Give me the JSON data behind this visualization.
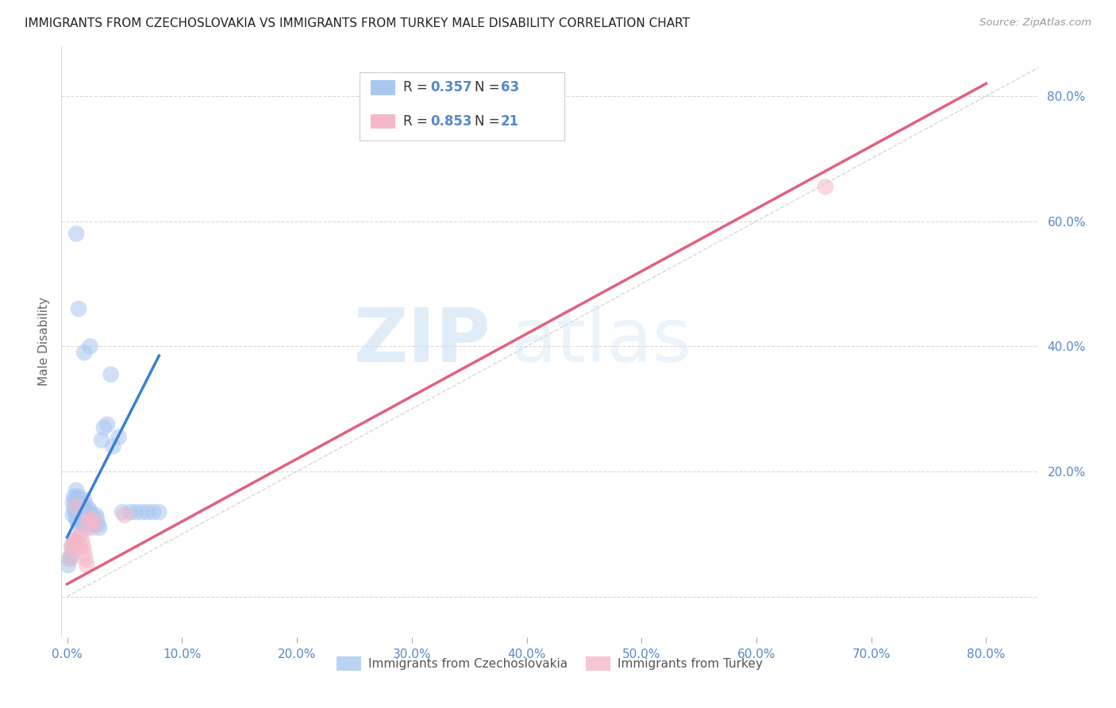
{
  "title": "IMMIGRANTS FROM CZECHOSLOVAKIA VS IMMIGRANTS FROM TURKEY MALE DISABILITY CORRELATION CHART",
  "source": "Source: ZipAtlas.com",
  "ylabel": "Male Disability",
  "background_color": "#ffffff",
  "grid_color": "#d8d8d8",
  "watermark_zip": "ZIP",
  "watermark_atlas": "atlas",
  "legend_r1": "R = 0.357",
  "legend_n1": "N = 63",
  "legend_r2": "R = 0.853",
  "legend_n2": "N = 21",
  "color_blue": "#a8c8f0",
  "color_pink": "#f5b8c8",
  "color_blue_line": "#3a7fd5",
  "color_pink_line": "#e06080",
  "color_diag": "#cccccc",
  "title_color": "#222222",
  "axis_tick_color": "#5588cc",
  "czech_x": [
    0.005,
    0.005,
    0.006,
    0.006,
    0.007,
    0.007,
    0.008,
    0.008,
    0.008,
    0.009,
    0.009,
    0.01,
    0.01,
    0.01,
    0.011,
    0.011,
    0.012,
    0.012,
    0.013,
    0.013,
    0.014,
    0.014,
    0.015,
    0.015,
    0.016,
    0.016,
    0.017,
    0.018,
    0.018,
    0.019,
    0.02,
    0.02,
    0.021,
    0.022,
    0.023,
    0.024,
    0.025,
    0.026,
    0.027,
    0.028,
    0.03,
    0.032,
    0.035,
    0.038,
    0.04,
    0.045,
    0.048,
    0.055,
    0.06,
    0.065,
    0.07,
    0.075,
    0.08,
    0.001,
    0.002,
    0.003,
    0.004,
    0.005,
    0.006,
    0.008,
    0.01,
    0.015,
    0.02
  ],
  "czech_y": [
    0.15,
    0.13,
    0.16,
    0.14,
    0.155,
    0.135,
    0.17,
    0.15,
    0.125,
    0.145,
    0.12,
    0.16,
    0.14,
    0.115,
    0.155,
    0.13,
    0.15,
    0.125,
    0.145,
    0.12,
    0.14,
    0.115,
    0.155,
    0.13,
    0.145,
    0.12,
    0.135,
    0.125,
    0.11,
    0.14,
    0.135,
    0.115,
    0.13,
    0.125,
    0.12,
    0.115,
    0.13,
    0.125,
    0.115,
    0.11,
    0.25,
    0.27,
    0.275,
    0.355,
    0.24,
    0.255,
    0.135,
    0.135,
    0.135,
    0.135,
    0.135,
    0.135,
    0.135,
    0.05,
    0.06,
    0.065,
    0.08,
    0.07,
    0.09,
    0.58,
    0.46,
    0.39,
    0.4
  ],
  "turkey_x": [
    0.003,
    0.004,
    0.005,
    0.006,
    0.007,
    0.008,
    0.009,
    0.01,
    0.011,
    0.012,
    0.013,
    0.014,
    0.015,
    0.016,
    0.017,
    0.018,
    0.02,
    0.022,
    0.024,
    0.05,
    0.66
  ],
  "turkey_y": [
    0.06,
    0.08,
    0.075,
    0.09,
    0.085,
    0.145,
    0.085,
    0.095,
    0.08,
    0.1,
    0.09,
    0.08,
    0.07,
    0.06,
    0.05,
    0.12,
    0.125,
    0.11,
    0.12,
    0.13,
    0.655
  ],
  "blue_line_x0": 0.0,
  "blue_line_y0": 0.095,
  "blue_line_x1": 0.08,
  "blue_line_y1": 0.385,
  "pink_line_x0": 0.0,
  "pink_line_y0": 0.02,
  "pink_line_x1": 0.8,
  "pink_line_y1": 0.82,
  "xlim_low": -0.005,
  "xlim_high": 0.845,
  "ylim_low": -0.065,
  "ylim_high": 0.88
}
